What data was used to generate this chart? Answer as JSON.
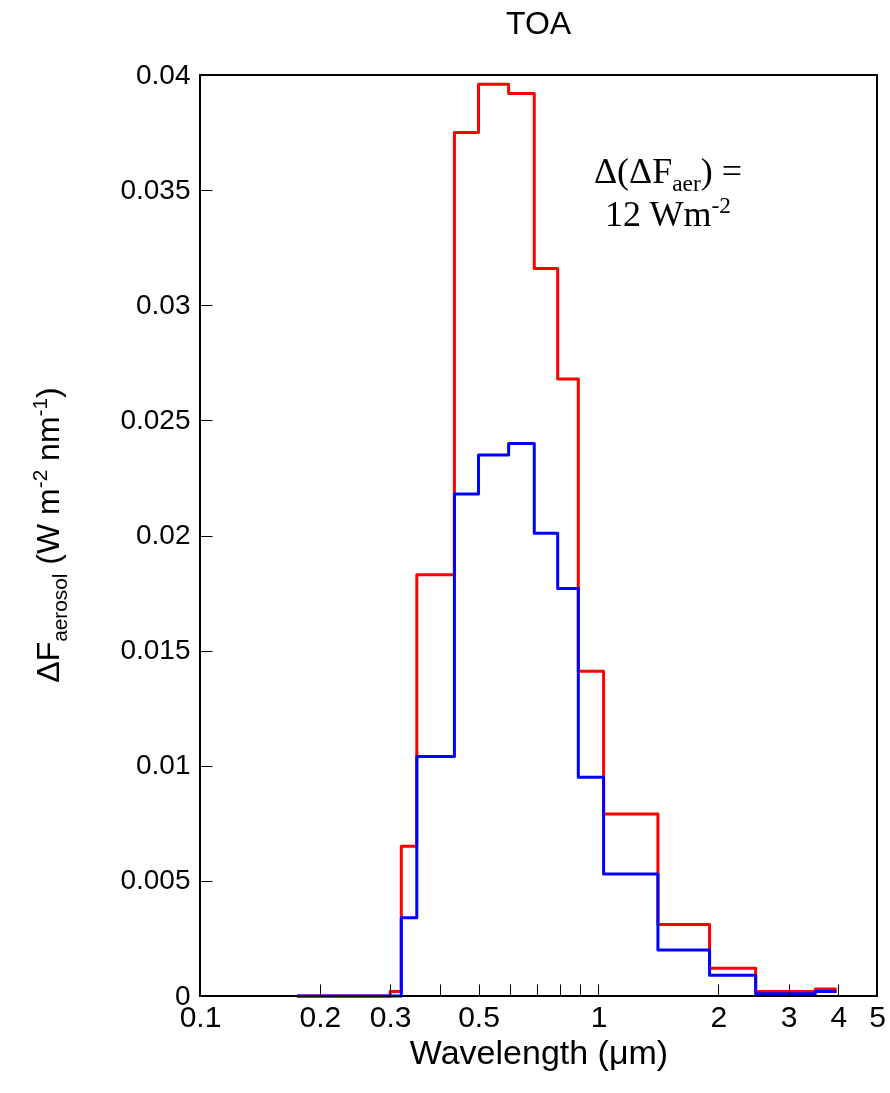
{
  "chart_data": {
    "type": "step",
    "title": "TOA",
    "xlabel": "Wavelength (μm)",
    "ylabel": "ΔF$_{aerosol}$ (W m$^{-2}$ nm$^{-1}$)",
    "annotations": [
      "Δ(ΔF$_{aer}$) =",
      "12 Wm$^{-2}$"
    ],
    "x": [
      0.175,
      0.3,
      0.32,
      0.35,
      0.435,
      0.5,
      0.595,
      0.69,
      0.79,
      0.89,
      1.03,
      1.41,
      1.9,
      2.48,
      3.5,
      3.96
    ],
    "series": [
      {
        "color": "#ff0000",
        "values": [
          0,
          0.0002,
          0.0065,
          0.0183,
          0.0375,
          0.0396,
          0.0392,
          0.0316,
          0.0268,
          0.0141,
          0.0079,
          0.0031,
          0.0012,
          0.0002,
          0.0003,
          0.0003
        ]
      },
      {
        "color": "#0000ff",
        "values": [
          0,
          0,
          0.0034,
          0.0104,
          0.0218,
          0.0235,
          0.024,
          0.0201,
          0.0177,
          0.0095,
          0.0053,
          0.002,
          0.0009,
          0.0001,
          0.0002,
          0.0002
        ]
      }
    ],
    "xlim": [
      0.1,
      5
    ],
    "xticks": [
      0.1,
      0.2,
      0.3,
      {
        "value": 0.4,
        "label": null
      },
      0.5,
      {
        "value": 0.6,
        "label": null
      },
      {
        "value": 0.7,
        "label": null
      },
      {
        "value": 0.8,
        "label": null
      },
      {
        "value": 0.9,
        "label": null
      },
      1,
      2,
      3,
      4,
      5
    ],
    "ylim": [
      0,
      0.04
    ],
    "yticks": [
      0,
      0.005,
      0.01,
      0.015,
      0.02,
      0.025,
      0.03,
      0.035,
      0.04
    ],
    "log": "x",
    "grid": false
  }
}
